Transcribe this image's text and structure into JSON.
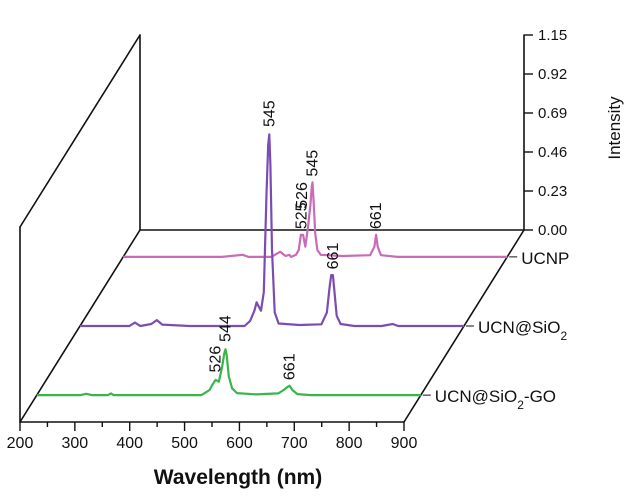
{
  "chart_data": {
    "type": "line",
    "title": "",
    "xlabel": "Wavelength (nm)",
    "zlabel": "Intensity",
    "xlim": [
      200,
      900
    ],
    "zlim": [
      0,
      1.15
    ],
    "x_ticks": [
      "200",
      "300",
      "400",
      "500",
      "600",
      "700",
      "800",
      "900"
    ],
    "z_ticks": [
      "0.00",
      "0.23",
      "0.46",
      "0.69",
      "0.92",
      "1.15"
    ],
    "grid": false,
    "legend": "series labels at the right end of each trace",
    "series": [
      {
        "name": "UCNP",
        "color": "#c86bb8",
        "points": [
          [
            200,
            0.0
          ],
          [
            380,
            0.0
          ],
          [
            418,
            0.012
          ],
          [
            428,
            0.0
          ],
          [
            470,
            0.0
          ],
          [
            486,
            0.03
          ],
          [
            496,
            0.005
          ],
          [
            503,
            0.012
          ],
          [
            506,
            0.0
          ],
          [
            515,
            0.012
          ],
          [
            520,
            0.04
          ],
          [
            524,
            0.13
          ],
          [
            528,
            0.13
          ],
          [
            532,
            0.06
          ],
          [
            537,
            0.18
          ],
          [
            541,
            0.3
          ],
          [
            544,
            0.42
          ],
          [
            545,
            0.44
          ],
          [
            547,
            0.33
          ],
          [
            550,
            0.14
          ],
          [
            554,
            0.04
          ],
          [
            560,
            0.012
          ],
          [
            600,
            0.005
          ],
          [
            650,
            0.01
          ],
          [
            658,
            0.06
          ],
          [
            661,
            0.13
          ],
          [
            664,
            0.06
          ],
          [
            670,
            0.01
          ],
          [
            700,
            0.0
          ],
          [
            900,
            0.0
          ]
        ],
        "peak_labels": [
          {
            "text": "525",
            "x": 525,
            "z": 0.14
          },
          {
            "text": "526",
            "x": 526,
            "z": 0.26
          },
          {
            "text": "545",
            "x": 545,
            "z": 0.45
          },
          {
            "text": "661",
            "x": 661,
            "z": 0.14
          }
        ]
      },
      {
        "name": "UCN@SiO2",
        "color": "#7c4cb5",
        "points": [
          [
            200,
            0.0
          ],
          [
            290,
            0.0
          ],
          [
            300,
            0.02
          ],
          [
            310,
            0.0
          ],
          [
            330,
            0.012
          ],
          [
            340,
            0.035
          ],
          [
            350,
            0.008
          ],
          [
            400,
            0.0
          ],
          [
            500,
            0.0
          ],
          [
            510,
            0.03
          ],
          [
            518,
            0.09
          ],
          [
            522,
            0.14
          ],
          [
            525,
            0.12
          ],
          [
            530,
            0.09
          ],
          [
            535,
            0.2
          ],
          [
            540,
            0.78
          ],
          [
            543,
            1.07
          ],
          [
            545,
            1.13
          ],
          [
            547,
            0.95
          ],
          [
            550,
            0.45
          ],
          [
            555,
            0.08
          ],
          [
            562,
            0.015
          ],
          [
            600,
            0.006
          ],
          [
            640,
            0.01
          ],
          [
            650,
            0.08
          ],
          [
            655,
            0.23
          ],
          [
            658,
            0.3
          ],
          [
            661,
            0.3
          ],
          [
            664,
            0.2
          ],
          [
            668,
            0.06
          ],
          [
            675,
            0.012
          ],
          [
            700,
            0.0
          ],
          [
            750,
            0.0
          ],
          [
            770,
            0.012
          ],
          [
            780,
            0.0
          ],
          [
            900,
            0.0
          ]
        ],
        "peak_labels": [
          {
            "text": "545",
            "x": 545,
            "z": 1.15
          },
          {
            "text": "661",
            "x": 661,
            "z": 0.31
          }
        ]
      },
      {
        "name": "UCN@SiO2-GO",
        "color": "#3ab54a",
        "points": [
          [
            200,
            0.0
          ],
          [
            280,
            0.0
          ],
          [
            290,
            0.008
          ],
          [
            300,
            0.0
          ],
          [
            330,
            0.0
          ],
          [
            335,
            0.01
          ],
          [
            340,
            0.0
          ],
          [
            500,
            0.0
          ],
          [
            515,
            0.03
          ],
          [
            520,
            0.06
          ],
          [
            526,
            0.09
          ],
          [
            532,
            0.08
          ],
          [
            538,
            0.17
          ],
          [
            542,
            0.25
          ],
          [
            544,
            0.27
          ],
          [
            546,
            0.24
          ],
          [
            550,
            0.11
          ],
          [
            556,
            0.04
          ],
          [
            565,
            0.012
          ],
          [
            600,
            0.004
          ],
          [
            640,
            0.01
          ],
          [
            650,
            0.03
          ],
          [
            658,
            0.05
          ],
          [
            661,
            0.055
          ],
          [
            666,
            0.03
          ],
          [
            675,
            0.006
          ],
          [
            700,
            0.0
          ],
          [
            900,
            0.0
          ]
        ],
        "peak_labels": [
          {
            "text": "526",
            "x": 526,
            "z": 0.11
          },
          {
            "text": "544",
            "x": 544,
            "z": 0.29
          },
          {
            "text": "661",
            "x": 661,
            "z": 0.065
          }
        ]
      }
    ],
    "series_label_parts": [
      [
        {
          "t": "UCNP"
        }
      ],
      [
        {
          "t": "UCN@SiO"
        },
        {
          "t": "2",
          "sub": true
        }
      ],
      [
        {
          "t": "UCN@SiO"
        },
        {
          "t": "2",
          "sub": true
        },
        {
          "t": "-GO"
        }
      ]
    ]
  }
}
